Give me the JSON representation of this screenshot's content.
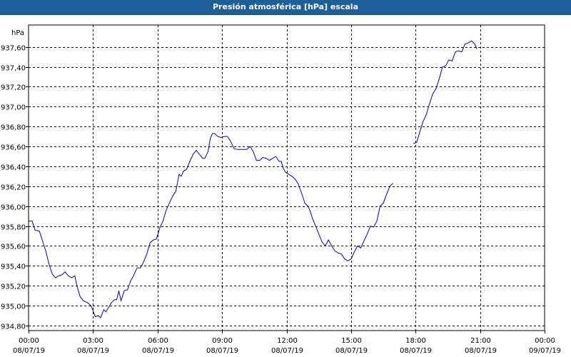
{
  "header": {
    "title": "Presión atmosférica [hPa] escala"
  },
  "colors": {
    "title_bg": "#1e5f99",
    "line": "#0000c8",
    "grid": "#000000"
  },
  "chart_data": {
    "type": "line",
    "title": "Presión atmosférica [hPa] escala",
    "ylabel": "hPa",
    "xlabel": "",
    "ylim": [
      934.75,
      937.82
    ],
    "xlim": [
      0,
      24
    ],
    "grid": true,
    "y_ticks": [
      934.8,
      935.0,
      935.2,
      935.4,
      935.6,
      935.8,
      936.0,
      936.2,
      936.4,
      936.6,
      936.8,
      937.0,
      937.2,
      937.4,
      937.6
    ],
    "y_tick_labels": [
      "934,80",
      "935,00",
      "935,20",
      "935,40",
      "935,60",
      "935,80",
      "936,00",
      "936,20",
      "936,40",
      "936,60",
      "936,80",
      "937,00",
      "937,20",
      "937,40",
      "937,60"
    ],
    "x_ticks": [
      0,
      3,
      6,
      9,
      12,
      15,
      18,
      21,
      24
    ],
    "x_tick_labels": [
      [
        "00:00",
        "08/07/19"
      ],
      [
        "03:00",
        "08/07/19"
      ],
      [
        "06:00",
        "08/07/19"
      ],
      [
        "09:00",
        "08/07/19"
      ],
      [
        "12:00",
        "08/07/19"
      ],
      [
        "15:00",
        "08/07/19"
      ],
      [
        "18:00",
        "08/07/19"
      ],
      [
        "21:00",
        "08/07/19"
      ],
      [
        "00:00",
        "09/07/19"
      ]
    ],
    "series": [
      {
        "segments": [
          [
            [
              0.0,
              935.85
            ],
            [
              0.17,
              935.85
            ],
            [
              0.3,
              935.76
            ],
            [
              0.5,
              935.75
            ],
            [
              0.65,
              935.65
            ],
            [
              0.8,
              935.55
            ],
            [
              0.95,
              935.42
            ],
            [
              1.1,
              935.32
            ],
            [
              1.25,
              935.28
            ],
            [
              1.4,
              935.3
            ],
            [
              1.55,
              935.31
            ],
            [
              1.7,
              935.34
            ],
            [
              1.85,
              935.3
            ],
            [
              2.0,
              935.28
            ],
            [
              2.15,
              935.3
            ],
            [
              2.25,
              935.2
            ],
            [
              2.4,
              935.09
            ],
            [
              2.55,
              935.05
            ],
            [
              2.75,
              935.03
            ],
            [
              2.9,
              935.0
            ],
            [
              3.0,
              934.95
            ],
            [
              3.1,
              934.89
            ],
            [
              3.25,
              934.9
            ],
            [
              3.35,
              934.88
            ],
            [
              3.5,
              934.96
            ],
            [
              3.6,
              934.94
            ],
            [
              3.75,
              934.99
            ],
            [
              3.85,
              935.03
            ],
            [
              4.0,
              935.06
            ],
            [
              4.1,
              935.06
            ],
            [
              4.2,
              935.15
            ],
            [
              4.3,
              935.05
            ],
            [
              4.45,
              935.15
            ],
            [
              4.6,
              935.16
            ],
            [
              4.75,
              935.25
            ],
            [
              4.9,
              935.31
            ],
            [
              5.05,
              935.38
            ],
            [
              5.2,
              935.38
            ],
            [
              5.35,
              935.44
            ],
            [
              5.5,
              935.52
            ],
            [
              5.65,
              935.63
            ],
            [
              5.8,
              935.66
            ],
            [
              5.95,
              935.67
            ],
            [
              6.1,
              935.78
            ],
            [
              6.25,
              935.85
            ],
            [
              6.4,
              935.96
            ],
            [
              6.55,
              936.03
            ],
            [
              6.7,
              936.1
            ],
            [
              6.85,
              936.15
            ],
            [
              7.0,
              936.32
            ],
            [
              7.1,
              936.3
            ],
            [
              7.2,
              936.35
            ],
            [
              7.35,
              936.37
            ],
            [
              7.5,
              936.45
            ],
            [
              7.65,
              936.52
            ],
            [
              7.8,
              936.56
            ],
            [
              7.95,
              936.52
            ],
            [
              8.1,
              936.48
            ],
            [
              8.2,
              936.48
            ],
            [
              8.35,
              936.55
            ],
            [
              8.45,
              936.68
            ],
            [
              8.55,
              936.73
            ],
            [
              8.65,
              936.73
            ],
            [
              8.8,
              936.7
            ],
            [
              8.95,
              936.69
            ],
            [
              9.1,
              936.7
            ],
            [
              9.25,
              936.7
            ],
            [
              9.4,
              936.65
            ],
            [
              9.55,
              936.58
            ],
            [
              9.7,
              936.57
            ],
            [
              9.85,
              936.57
            ],
            [
              10.0,
              936.57
            ],
            [
              10.15,
              936.57
            ],
            [
              10.3,
              936.6
            ],
            [
              10.45,
              936.55
            ],
            [
              10.6,
              936.46
            ],
            [
              10.75,
              936.46
            ],
            [
              10.9,
              936.49
            ],
            [
              11.05,
              936.48
            ],
            [
              11.2,
              936.46
            ],
            [
              11.35,
              936.48
            ],
            [
              11.5,
              936.5
            ],
            [
              11.65,
              936.45
            ],
            [
              11.75,
              936.45
            ],
            [
              11.85,
              936.38
            ],
            [
              11.95,
              936.34
            ],
            [
              12.1,
              936.32
            ],
            [
              12.25,
              936.3
            ],
            [
              12.4,
              936.27
            ],
            [
              12.55,
              936.22
            ],
            [
              12.7,
              936.13
            ],
            [
              12.85,
              936.03
            ],
            [
              13.0,
              936.0
            ],
            [
              13.1,
              935.95
            ],
            [
              13.2,
              935.88
            ],
            [
              13.35,
              935.8
            ],
            [
              13.5,
              935.72
            ],
            [
              13.65,
              935.64
            ],
            [
              13.8,
              935.6
            ],
            [
              13.95,
              935.66
            ],
            [
              14.1,
              935.6
            ],
            [
              14.25,
              935.55
            ],
            [
              14.4,
              935.53
            ],
            [
              14.55,
              935.52
            ],
            [
              14.7,
              935.47
            ],
            [
              14.85,
              935.45
            ],
            [
              15.0,
              935.47
            ],
            [
              15.15,
              935.54
            ],
            [
              15.3,
              935.6
            ],
            [
              15.45,
              935.58
            ],
            [
              15.6,
              935.65
            ],
            [
              15.75,
              935.72
            ],
            [
              15.9,
              935.8
            ],
            [
              16.05,
              935.79
            ],
            [
              16.2,
              935.85
            ],
            [
              16.35,
              936.0
            ],
            [
              16.5,
              936.03
            ],
            [
              16.65,
              936.12
            ],
            [
              16.8,
              936.2
            ],
            [
              16.95,
              936.23
            ]
          ],
          [
            [
              17.9,
              936.63
            ],
            [
              18.05,
              936.64
            ],
            [
              18.2,
              936.75
            ],
            [
              18.35,
              936.85
            ],
            [
              18.5,
              936.92
            ],
            [
              18.65,
              937.03
            ],
            [
              18.8,
              937.13
            ],
            [
              18.95,
              937.18
            ],
            [
              19.1,
              937.28
            ],
            [
              19.25,
              937.4
            ],
            [
              19.4,
              937.41
            ],
            [
              19.55,
              937.47
            ],
            [
              19.7,
              937.46
            ],
            [
              19.85,
              937.55
            ],
            [
              20.0,
              937.56
            ],
            [
              20.15,
              937.55
            ],
            [
              20.3,
              937.63
            ],
            [
              20.45,
              937.64
            ],
            [
              20.6,
              937.66
            ],
            [
              20.75,
              937.63
            ],
            [
              20.85,
              937.58
            ]
          ]
        ]
      }
    ]
  }
}
